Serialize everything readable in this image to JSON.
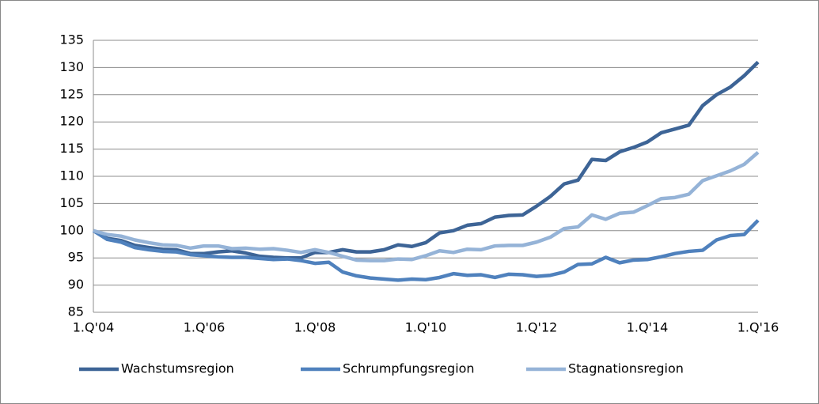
{
  "chart_data": {
    "type": "line",
    "categories": [
      "1.Q'04",
      null,
      null,
      null,
      null,
      null,
      null,
      null,
      "1.Q'06",
      null,
      null,
      null,
      null,
      null,
      null,
      null,
      "1.Q'08",
      null,
      null,
      null,
      null,
      null,
      null,
      null,
      "1.Q'10",
      null,
      null,
      null,
      null,
      null,
      null,
      null,
      "1.Q'12",
      null,
      null,
      null,
      null,
      null,
      null,
      null,
      "1.Q'14",
      null,
      null,
      null,
      null,
      null,
      null,
      null,
      "1.Q'16"
    ],
    "series": [
      {
        "name": "Wachstumsregion",
        "color": "#3d6496",
        "values": [
          100,
          98.6,
          98.2,
          97.3,
          96.9,
          96.6,
          96.5,
          95.8,
          95.8,
          96.1,
          96.3,
          95.9,
          95.3,
          95.1,
          95.0,
          95.0,
          96.0,
          96.0,
          96.5,
          96.1,
          96.1,
          96.5,
          97.4,
          97.1,
          97.8,
          99.6,
          100.0,
          101.0,
          101.3,
          102.5,
          102.8,
          102.9,
          104.5,
          106.3,
          108.6,
          109.3,
          113.1,
          112.9,
          114.5,
          115.3,
          116.3,
          118.0,
          118.7,
          119.4,
          123.0,
          125.0,
          126.4,
          128.5,
          131.0
        ]
      },
      {
        "name": "Schrumpfungsregion",
        "color": "#4f81bd",
        "values": [
          100,
          98.4,
          97.9,
          96.9,
          96.5,
          96.2,
          96.1,
          95.6,
          95.4,
          95.2,
          95.1,
          95.1,
          94.9,
          94.7,
          94.8,
          94.5,
          94.0,
          94.2,
          92.4,
          91.7,
          91.3,
          91.1,
          90.9,
          91.1,
          91.0,
          91.4,
          92.1,
          91.8,
          91.9,
          91.4,
          92.0,
          91.9,
          91.6,
          91.8,
          92.4,
          93.8,
          93.9,
          95.1,
          94.1,
          94.6,
          94.7,
          95.2,
          95.8,
          96.2,
          96.4,
          98.3,
          99.1,
          99.3,
          101.9
        ]
      },
      {
        "name": "Stagnationsregion",
        "color": "#95b3d7",
        "values": [
          100,
          99.3,
          99.0,
          98.3,
          97.8,
          97.4,
          97.3,
          96.8,
          97.2,
          97.2,
          96.7,
          96.8,
          96.6,
          96.7,
          96.4,
          96.0,
          96.5,
          96.0,
          95.3,
          94.6,
          94.5,
          94.5,
          94.8,
          94.7,
          95.4,
          96.3,
          96.0,
          96.6,
          96.5,
          97.2,
          97.3,
          97.3,
          97.9,
          98.8,
          100.4,
          100.7,
          102.9,
          102.1,
          103.2,
          103.4,
          104.6,
          105.9,
          106.1,
          106.7,
          109.2,
          110.1,
          111.0,
          112.2,
          114.4
        ]
      }
    ],
    "ylim": [
      85,
      135
    ],
    "yticks": [
      85,
      90,
      95,
      100,
      105,
      110,
      115,
      120,
      125,
      130,
      135
    ],
    "grid": true,
    "legend": "bottom"
  }
}
